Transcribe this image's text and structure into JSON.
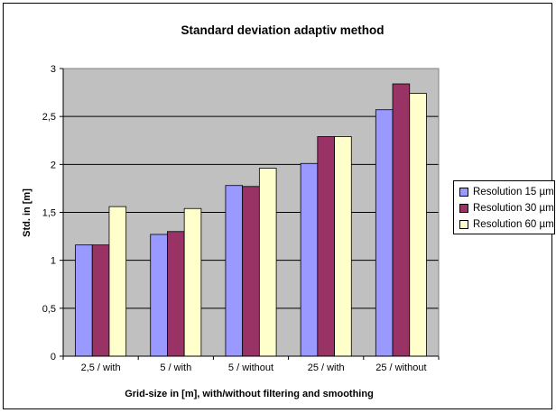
{
  "chart_data": {
    "type": "bar",
    "title": "Standard deviation adaptiv method",
    "xlabel": "Grid-size in [m], with/without filtering and smoothing",
    "ylabel": "Std. in [m]",
    "categories": [
      "2,5 / with",
      "5 / with",
      "5 / without",
      "25 / with",
      "25 / without"
    ],
    "series": [
      {
        "name": "Resolution 15 µm",
        "color": "#9999ff",
        "values": [
          1.16,
          1.27,
          1.78,
          2.01,
          2.57
        ]
      },
      {
        "name": "Resolution 30 µm",
        "color": "#993366",
        "values": [
          1.16,
          1.3,
          1.77,
          2.29,
          2.84
        ]
      },
      {
        "name": "Resolution 60 µm",
        "color": "#ffffcc",
        "values": [
          1.56,
          1.54,
          1.96,
          2.29,
          2.74
        ]
      }
    ],
    "ylim": [
      0,
      3
    ],
    "yticks": [
      "0",
      "0,5",
      "1",
      "1,5",
      "2",
      "2,5",
      "3"
    ],
    "plot_background": "#c0c0c0",
    "grid": true,
    "legend_position": "right"
  }
}
